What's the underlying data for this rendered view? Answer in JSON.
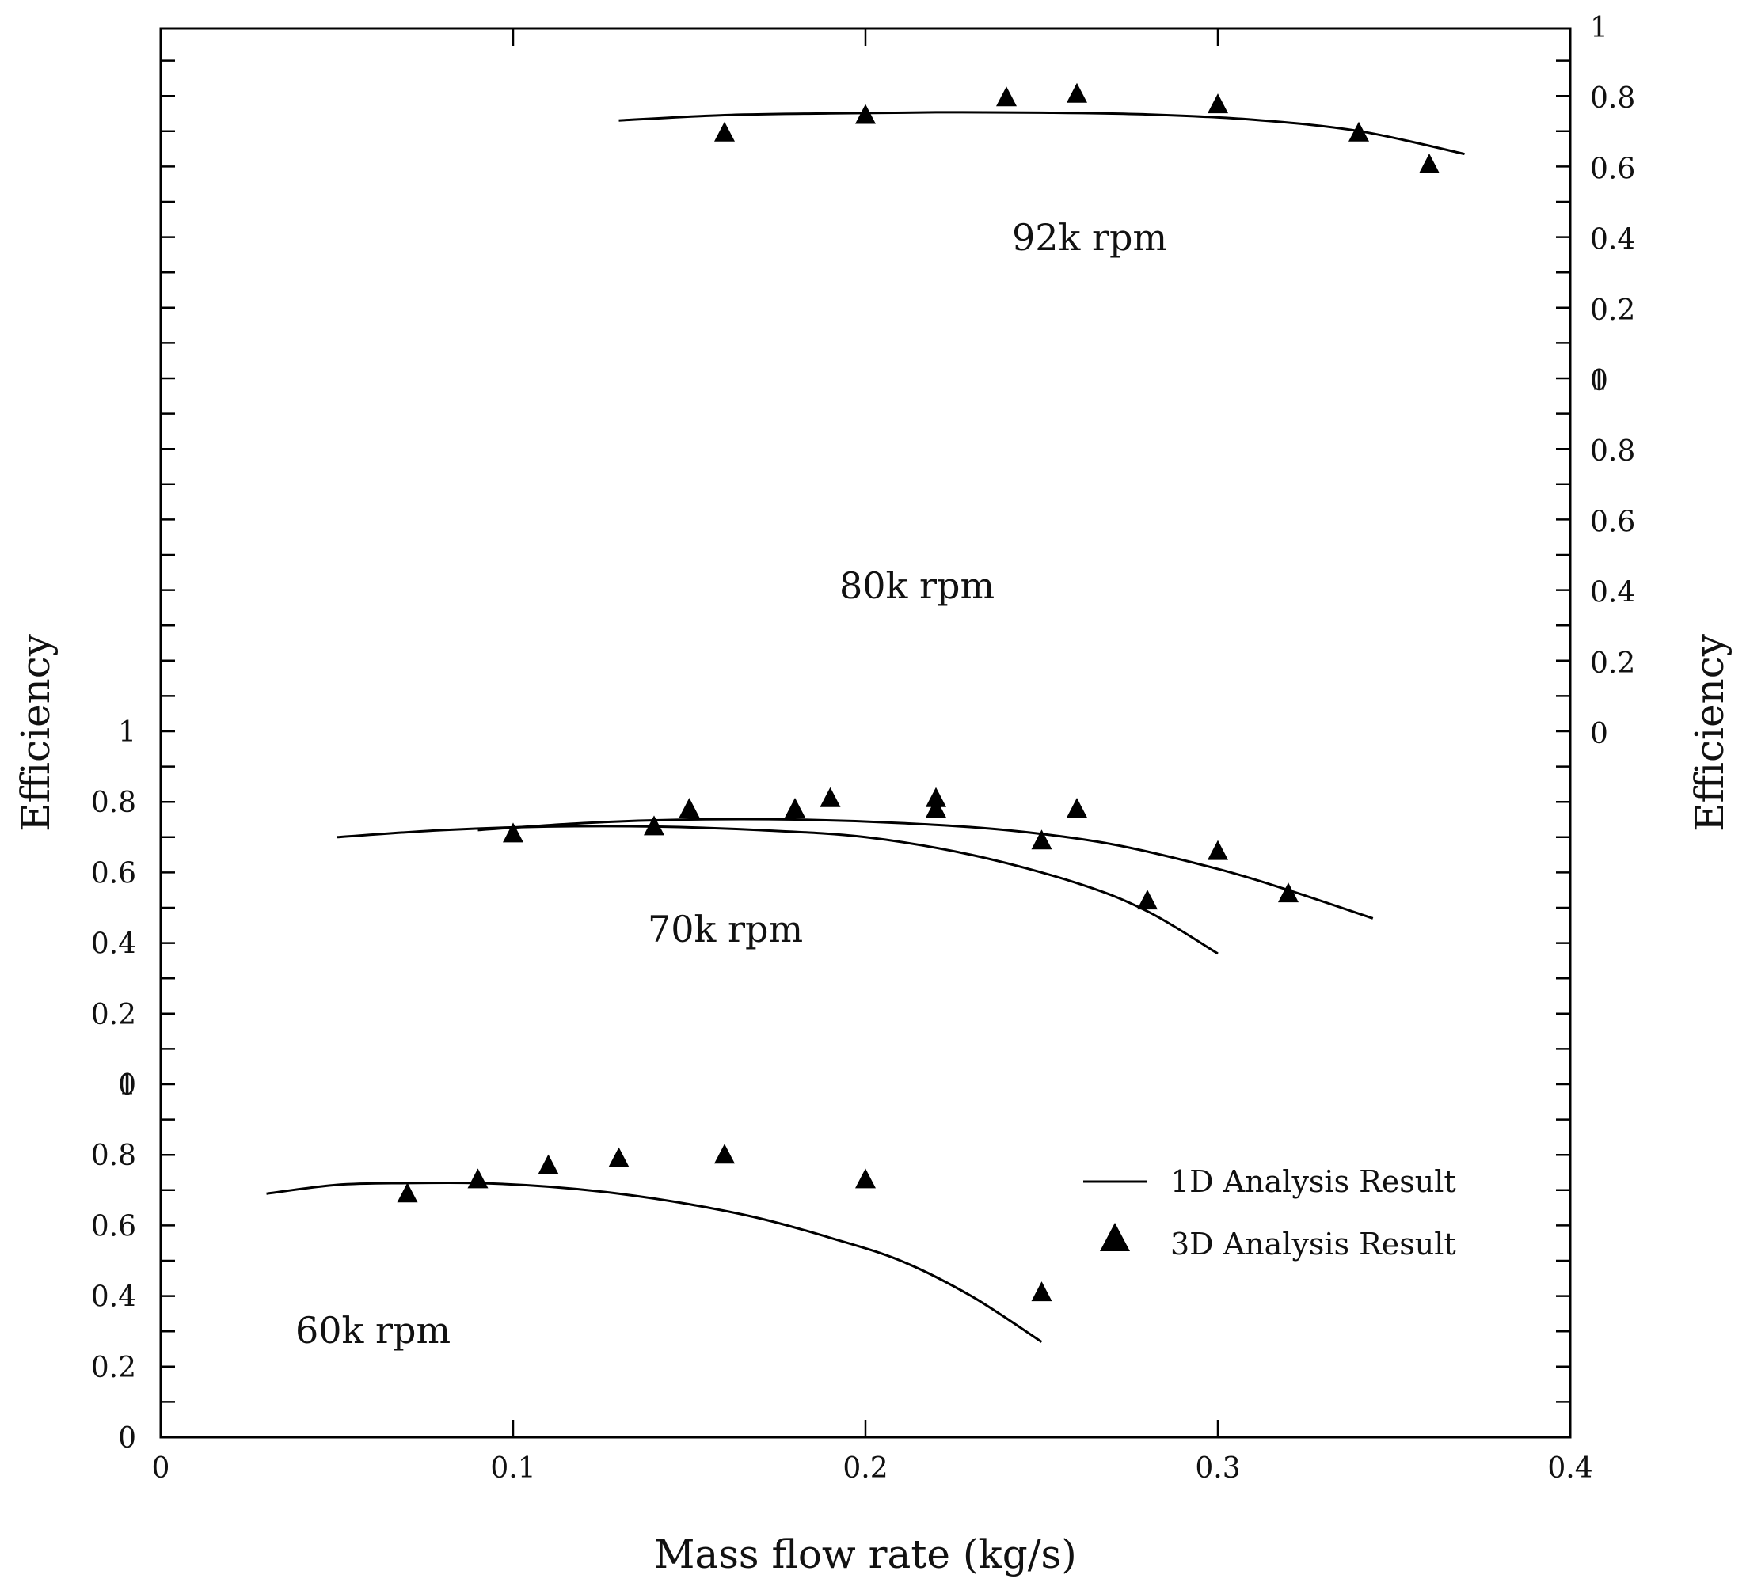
{
  "chart_data": {
    "type": "line",
    "title": "",
    "xlabel": "Mass flow rate (kg/s)",
    "ylabel_left": "Efficiency",
    "ylabel_right": "Efficiency",
    "xlim": [
      0,
      0.4
    ],
    "x_ticks": [
      "0",
      "0.1",
      "0.2",
      "0.3",
      "0.4"
    ],
    "left_axis_ticks": [
      "0",
      "0.2",
      "0.4",
      "0.6",
      "0.8",
      "1"
    ],
    "right_axis_ticks": [
      "0",
      "0.2",
      "0.4",
      "0.6",
      "0.8",
      "1"
    ],
    "panels": [
      {
        "name": "60k rpm",
        "label": "60k rpm",
        "axis": "left",
        "ylim": [
          0,
          1
        ],
        "curve_1d": {
          "x": [
            0.03,
            0.05,
            0.07,
            0.09,
            0.11,
            0.13,
            0.15,
            0.17,
            0.19,
            0.21,
            0.23,
            0.25
          ],
          "y": [
            0.69,
            0.715,
            0.72,
            0.72,
            0.71,
            0.69,
            0.66,
            0.62,
            0.565,
            0.5,
            0.4,
            0.27
          ]
        },
        "points_3d": {
          "x": [
            0.07,
            0.09,
            0.11,
            0.13,
            0.16,
            0.2,
            0.25
          ],
          "y": [
            0.69,
            0.73,
            0.77,
            0.79,
            0.8,
            0.73,
            0.41
          ]
        }
      },
      {
        "name": "70k rpm",
        "label": "70k rpm",
        "axis": "right",
        "ylim": [
          0,
          1
        ],
        "curve_1d": {
          "x": [
            0.05,
            0.08,
            0.11,
            0.14,
            0.17,
            0.2,
            0.23,
            0.26,
            0.28,
            0.3
          ],
          "y": [
            0.7,
            0.72,
            0.73,
            0.73,
            0.72,
            0.7,
            0.65,
            0.57,
            0.49,
            0.37
          ]
        },
        "points_3d": {
          "x": [
            0.1,
            0.15,
            0.19,
            0.22,
            0.25,
            0.28
          ],
          "y": [
            0.71,
            0.78,
            0.81,
            0.78,
            0.69,
            0.52
          ]
        }
      },
      {
        "name": "80k rpm",
        "label": "80k rpm",
        "axis": "left",
        "ylim": [
          0,
          1
        ],
        "curve_1d": {
          "x": [
            0.09,
            0.12,
            0.15,
            0.18,
            0.21,
            0.24,
            0.27,
            0.3,
            0.32,
            0.344
          ],
          "y": [
            0.72,
            0.74,
            0.75,
            0.75,
            0.74,
            0.72,
            0.68,
            0.61,
            0.55,
            0.47
          ]
        },
        "points_3d": {
          "x": [
            0.14,
            0.18,
            0.22,
            0.26,
            0.3,
            0.32
          ],
          "y": [
            0.73,
            0.78,
            0.81,
            0.78,
            0.66,
            0.54
          ]
        }
      },
      {
        "name": "92k rpm",
        "label": "92k rpm",
        "axis": "right",
        "ylim": [
          0,
          1
        ],
        "curve_1d": {
          "x": [
            0.13,
            0.16,
            0.19,
            0.22,
            0.25,
            0.28,
            0.31,
            0.34,
            0.37
          ],
          "y": [
            0.735,
            0.75,
            0.755,
            0.758,
            0.757,
            0.752,
            0.737,
            0.705,
            0.64
          ]
        },
        "points_3d": {
          "x": [
            0.16,
            0.2,
            0.24,
            0.26,
            0.3,
            0.34,
            0.36
          ],
          "y": [
            0.7,
            0.75,
            0.8,
            0.81,
            0.78,
            0.7,
            0.61
          ]
        }
      }
    ],
    "legend": {
      "position": "lower-right",
      "entries": [
        {
          "label": "1D Analysis Result",
          "marker": "line"
        },
        {
          "label": "3D Analysis Result",
          "marker": "triangle"
        }
      ]
    },
    "colors": {
      "line": "#000000",
      "marker": "#000000"
    }
  }
}
